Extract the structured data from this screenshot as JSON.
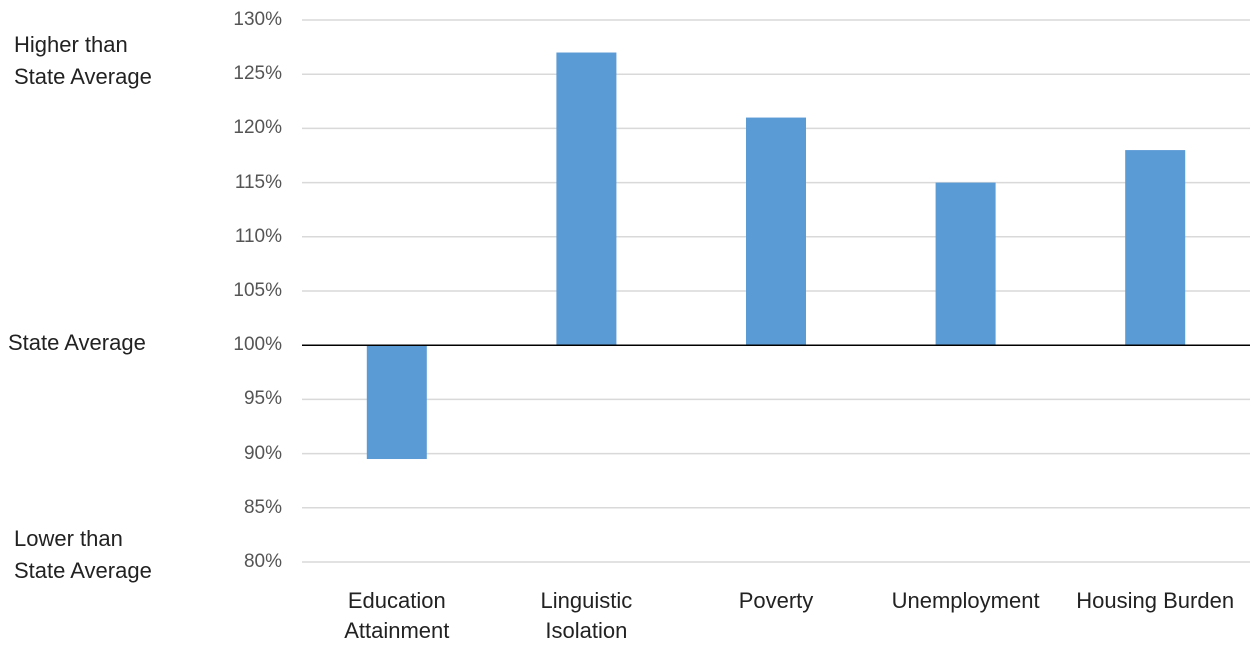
{
  "chart_data": {
    "type": "bar",
    "categories": [
      "Education Attainment",
      "Linguistic Isolation",
      "Poverty",
      "Unemployment",
      "Housing Burden"
    ],
    "values": [
      89.5,
      127,
      121,
      115,
      118
    ],
    "color": "#5b9bd5",
    "baseline": 100,
    "ylim": [
      80,
      130
    ],
    "yticks": [
      {
        "value": 80,
        "label": "80%"
      },
      {
        "value": 85,
        "label": "85%"
      },
      {
        "value": 90,
        "label": "90%"
      },
      {
        "value": 95,
        "label": "95%"
      },
      {
        "value": 100,
        "label": "100%"
      },
      {
        "value": 105,
        "label": "105%"
      },
      {
        "value": 110,
        "label": "110%"
      },
      {
        "value": 115,
        "label": "115%"
      },
      {
        "value": 120,
        "label": "120%"
      },
      {
        "value": 125,
        "label": "125%"
      },
      {
        "value": 130,
        "label": "130%"
      }
    ],
    "grid": true,
    "annotations": [
      [
        "Higher than",
        "State Average"
      ],
      [
        "State Average"
      ],
      [
        "Lower than",
        "State Average"
      ]
    ]
  }
}
